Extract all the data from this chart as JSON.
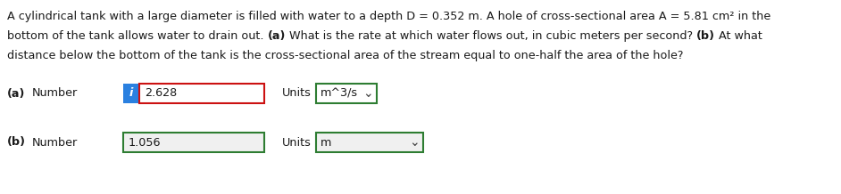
{
  "background_color": "#ffffff",
  "line1": "A cylindrical tank with a large diameter is filled with water to a depth D = 0.352 m. A hole of cross-sectional area A = 5.81 cm² in the",
  "line2_pre": "bottom of the tank allows water to drain out. ",
  "line2_a": "(a)",
  "line2_mid": " What is the rate at which water flows out, in cubic meters per second? ",
  "line2_b": "(b)",
  "line2_post": " At what",
  "line3": "distance below the bottom of the tank is the cross-sectional area of the stream equal to one-half the area of the hole?",
  "row_a_value": "2.628",
  "row_a_units_value": "m^3/s",
  "row_b_value": "1.056",
  "row_b_units_value": "m",
  "info_box_color": "#2a80e0",
  "input_box_border_color_a": "#cc1111",
  "input_box_border_color_b": "#2e7d32",
  "units_box_border_color": "#2e7d32",
  "input_bg_a": "#ffffff",
  "input_bg_b": "#f0f0f0",
  "units_bg_a": "#ffffff",
  "units_bg_b": "#f0f0f0",
  "text_color": "#1a1a1a",
  "font_size_text": 9.2,
  "font_size_ui": 9.2
}
